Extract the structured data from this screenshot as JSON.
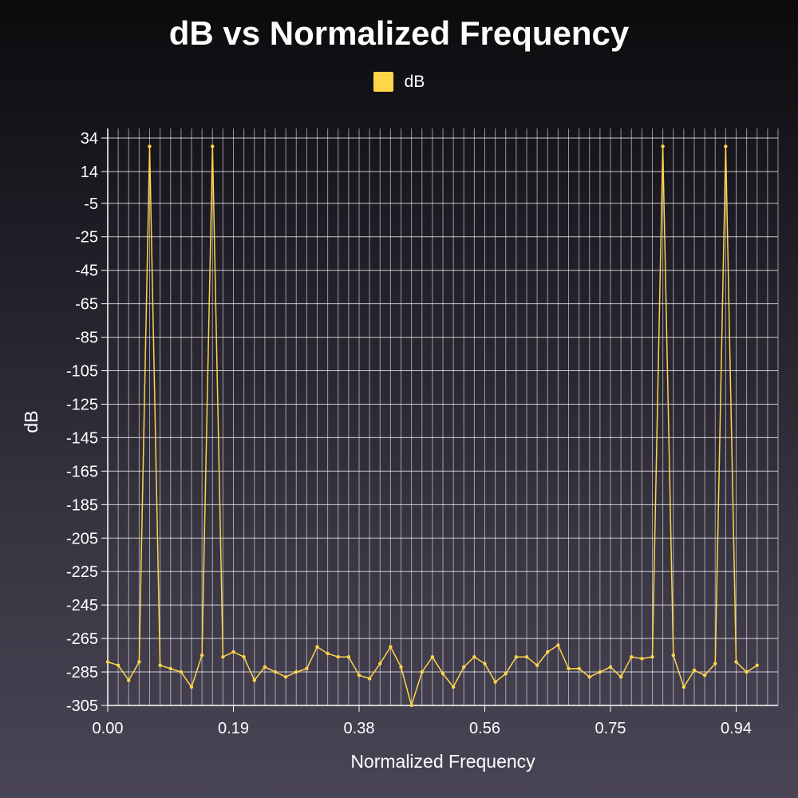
{
  "chart_data": {
    "type": "line",
    "title": "dB vs Normalized Frequency",
    "xlabel": "Normalized Frequency",
    "ylabel": "dB",
    "xlim": [
      0,
      1.0
    ],
    "ylim": [
      -305,
      34
    ],
    "x_ticks": [
      "0.00",
      "0.19",
      "0.38",
      "0.56",
      "0.75",
      "0.94"
    ],
    "x_tick_values": [
      0.0,
      0.1875,
      0.375,
      0.5625,
      0.75,
      0.9375
    ],
    "y_ticks": [
      34,
      14,
      -5,
      -25,
      -45,
      -65,
      -85,
      -105,
      -125,
      -145,
      -165,
      -185,
      -205,
      -225,
      -245,
      -265,
      -285,
      -305
    ],
    "grid": true,
    "legend_position": "top-center",
    "series": [
      {
        "name": "dB",
        "color": "#ffd54a",
        "x_step": 0.015625,
        "values": [
          -279,
          -281,
          -290,
          -279,
          29,
          -281,
          -283,
          -285,
          -294,
          -275,
          29,
          -276,
          -273,
          -276,
          -290,
          -282,
          -285,
          -288,
          -285,
          -283,
          -270,
          -274,
          -276,
          -276,
          -287,
          -289,
          -280,
          -270,
          -282,
          -305,
          -285,
          -276,
          -286,
          -294,
          -282,
          -276,
          -280,
          -291,
          -286,
          -276,
          -276,
          -281,
          -273,
          -269,
          -283,
          -283,
          -288,
          -285,
          -282,
          -288,
          -276,
          -277,
          -276,
          29,
          -275,
          -294,
          -284,
          -287,
          -280,
          29,
          -279,
          -285,
          -281
        ]
      }
    ]
  }
}
